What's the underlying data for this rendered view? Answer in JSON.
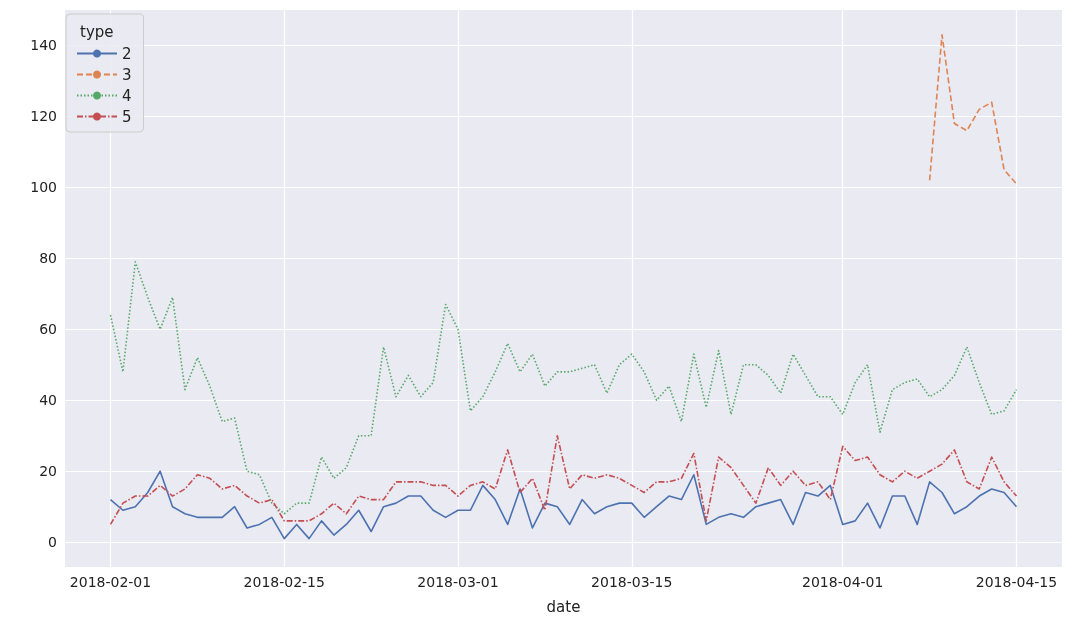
{
  "chart_data": {
    "type": "line",
    "xlabel": "date",
    "legend_title": "type",
    "legend": "top left",
    "grid": true,
    "x": [
      "2018-02-01",
      "2018-02-02",
      "2018-02-03",
      "2018-02-04",
      "2018-02-05",
      "2018-02-06",
      "2018-02-07",
      "2018-02-08",
      "2018-02-09",
      "2018-02-10",
      "2018-02-11",
      "2018-02-12",
      "2018-02-13",
      "2018-02-14",
      "2018-02-15",
      "2018-02-16",
      "2018-02-17",
      "2018-02-18",
      "2018-02-19",
      "2018-02-20",
      "2018-02-21",
      "2018-02-22",
      "2018-02-23",
      "2018-02-24",
      "2018-02-25",
      "2018-02-26",
      "2018-02-27",
      "2018-02-28",
      "2018-03-01",
      "2018-03-02",
      "2018-03-03",
      "2018-03-04",
      "2018-03-05",
      "2018-03-06",
      "2018-03-07",
      "2018-03-08",
      "2018-03-09",
      "2018-03-10",
      "2018-03-11",
      "2018-03-12",
      "2018-03-13",
      "2018-03-14",
      "2018-03-15",
      "2018-03-16",
      "2018-03-17",
      "2018-03-18",
      "2018-03-19",
      "2018-03-20",
      "2018-03-21",
      "2018-03-22",
      "2018-03-23",
      "2018-03-24",
      "2018-03-25",
      "2018-03-26",
      "2018-03-27",
      "2018-03-28",
      "2018-03-29",
      "2018-03-30",
      "2018-03-31",
      "2018-04-01",
      "2018-04-02",
      "2018-04-03",
      "2018-04-04",
      "2018-04-05",
      "2018-04-06",
      "2018-04-07",
      "2018-04-08",
      "2018-04-09",
      "2018-04-10",
      "2018-04-11",
      "2018-04-12",
      "2018-04-13",
      "2018-04-14",
      "2018-04-15"
    ],
    "xlim": [
      "2018-01-28T08:00",
      "2018-04-18T16:00"
    ],
    "xticks": [
      "2018-02-01",
      "2018-02-15",
      "2018-03-01",
      "2018-03-15",
      "2018-04-01",
      "2018-04-15"
    ],
    "ylim": [
      -7,
      150
    ],
    "yticks": [
      0,
      20,
      40,
      60,
      80,
      100,
      120,
      140
    ],
    "series": [
      {
        "name": "2",
        "color": "#4c72b0",
        "line_style": "solid",
        "values": [
          12,
          9,
          10,
          14,
          20,
          10,
          8,
          7,
          7,
          7,
          10,
          4,
          5,
          7,
          1,
          5,
          1,
          6,
          2,
          5,
          9,
          3,
          10,
          11,
          13,
          13,
          9,
          7,
          9,
          9,
          16,
          12,
          5,
          15,
          4,
          11,
          10,
          5,
          12,
          8,
          10,
          11,
          11,
          7,
          10,
          13,
          12,
          19,
          5,
          7,
          8,
          7,
          10,
          11,
          12,
          5,
          14,
          13,
          16,
          5,
          6,
          11,
          4,
          13,
          13,
          5,
          17,
          14,
          8,
          10,
          13,
          15,
          14,
          10
        ]
      },
      {
        "name": "3",
        "color": "#dd8452",
        "line_style": "dashed",
        "x": [
          "2018-04-08",
          "2018-04-09",
          "2018-04-10",
          "2018-04-11",
          "2018-04-12",
          "2018-04-13",
          "2018-04-14",
          "2018-04-15"
        ],
        "values": [
          102,
          143,
          118,
          116,
          122,
          124,
          105,
          101
        ]
      },
      {
        "name": "4",
        "color": "#55a868",
        "line_style": "dotted",
        "values": [
          64,
          48,
          79,
          69,
          60,
          69,
          43,
          52,
          44,
          34,
          35,
          20,
          19,
          11,
          8,
          11,
          11,
          24,
          18,
          21,
          30,
          30,
          55,
          41,
          47,
          41,
          45,
          67,
          60,
          37,
          41,
          48,
          56,
          48,
          53,
          44,
          48,
          48,
          49,
          50,
          42,
          50,
          53,
          48,
          40,
          44,
          34,
          53,
          38,
          54,
          36,
          50,
          50,
          47,
          42,
          53,
          47,
          41,
          41,
          36,
          45,
          50,
          31,
          43,
          45,
          46,
          41,
          43,
          47,
          55,
          45,
          36,
          37,
          43
        ]
      },
      {
        "name": "5",
        "color": "#c44e52",
        "line_style": "dashdot",
        "values": [
          5,
          11,
          13,
          13,
          16,
          13,
          15,
          19,
          18,
          15,
          16,
          13,
          11,
          12,
          6,
          6,
          6,
          8,
          11,
          8,
          13,
          12,
          12,
          17,
          17,
          17,
          16,
          16,
          13,
          16,
          17,
          15,
          26,
          14,
          18,
          9,
          30,
          15,
          19,
          18,
          19,
          18,
          16,
          14,
          17,
          17,
          18,
          25,
          6,
          24,
          21,
          16,
          11,
          21,
          16,
          20,
          16,
          17,
          12,
          27,
          23,
          24,
          19,
          17,
          20,
          18,
          20,
          22,
          26,
          17,
          15,
          24,
          17,
          13
        ]
      }
    ]
  }
}
